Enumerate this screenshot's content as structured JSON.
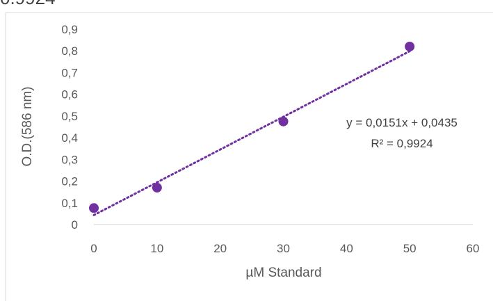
{
  "cut_off_text": "0.9924",
  "chart_data": {
    "type": "scatter",
    "xlabel": "µM Standard",
    "ylabel": "O.D.(586 nm)",
    "xlim": [
      0,
      60
    ],
    "ylim": [
      0,
      0.9
    ],
    "x_ticks": [
      0,
      10,
      20,
      30,
      40,
      50,
      60
    ],
    "x_tick_labels": [
      "0",
      "10",
      "20",
      "30",
      "40",
      "50",
      "60"
    ],
    "y_ticks": [
      0,
      0.1,
      0.2,
      0.3,
      0.4,
      0.5,
      0.6,
      0.7,
      0.8,
      0.9
    ],
    "y_tick_labels": [
      "0",
      "0,1",
      "0,2",
      "0,3",
      "0,4",
      "0,5",
      "0,6",
      "0,7",
      "0,8",
      "0,9"
    ],
    "grid": false,
    "legend": "none",
    "series": [
      {
        "x": [
          0,
          10,
          30,
          50
        ],
        "y": [
          0.076,
          0.17,
          0.475,
          0.82
        ],
        "color": "#7030a0"
      }
    ],
    "trendline": {
      "type": "linear",
      "slope": 0.0151,
      "intercept": 0.0435,
      "style": "dotted",
      "color": "#7030a0",
      "equation": "y = 0,0151x + 0,0435",
      "r_squared": "R² = 0,9924"
    },
    "colors": {
      "axis": "#d9d9d9",
      "text": "#595959"
    }
  }
}
